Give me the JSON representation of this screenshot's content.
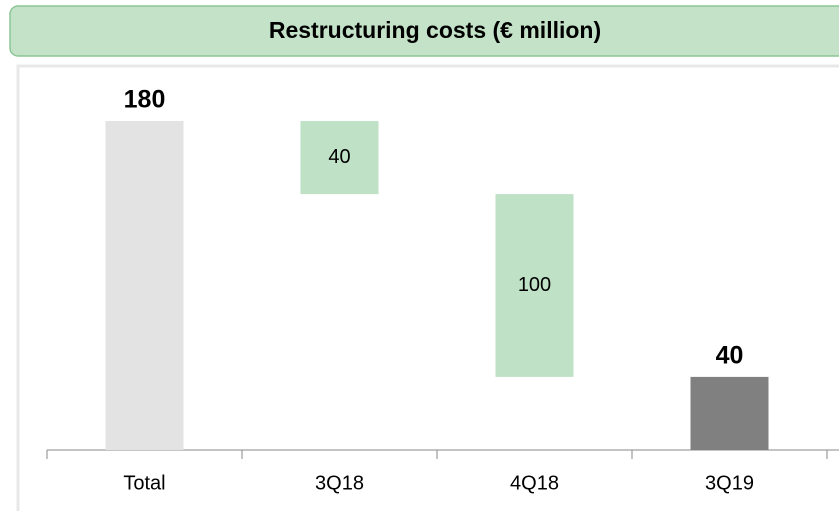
{
  "chart_data": {
    "type": "waterfall",
    "title": "Restructuring costs (€ million)",
    "categories": [
      "Total",
      "3Q18",
      "4Q18",
      "3Q19"
    ],
    "values": [
      180,
      40,
      100,
      40
    ],
    "measure": [
      "total",
      "decrease",
      "decrease",
      "total"
    ],
    "colors": [
      "#e3e3e3",
      "#bfe1c5",
      "#bfe1c5",
      "#808080"
    ]
  }
}
